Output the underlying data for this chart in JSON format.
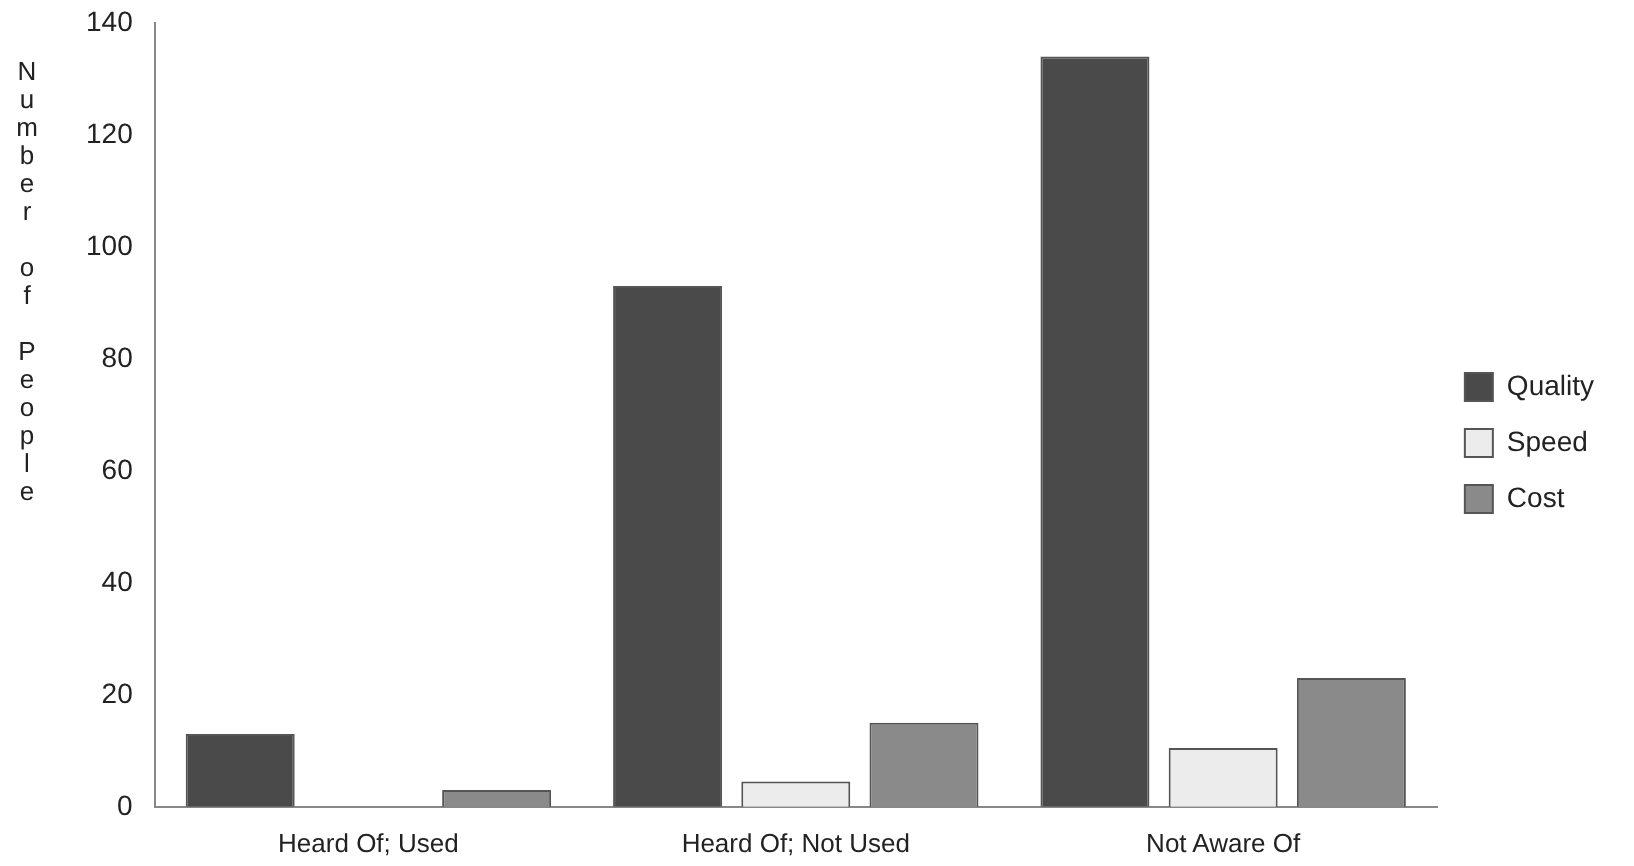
{
  "chart_data": {
    "type": "bar",
    "ylabel": "Number of People",
    "categories": [
      "Heard Of; Used",
      "Heard Of; Not Used",
      "Not Aware Of"
    ],
    "series": [
      {
        "name": "Quality",
        "color": "#4a4a4a",
        "values": [
          13,
          93,
          134
        ]
      },
      {
        "name": "Speed",
        "color": "#ececec",
        "values": [
          0,
          4.5,
          10.5
        ]
      },
      {
        "name": "Cost",
        "color": "#8a8a8a",
        "values": [
          3,
          15,
          23
        ]
      }
    ],
    "ylim": [
      0,
      140
    ],
    "yticks": [
      0,
      20,
      40,
      60,
      80,
      100,
      120,
      140
    ],
    "grid": false,
    "legend": "right"
  }
}
